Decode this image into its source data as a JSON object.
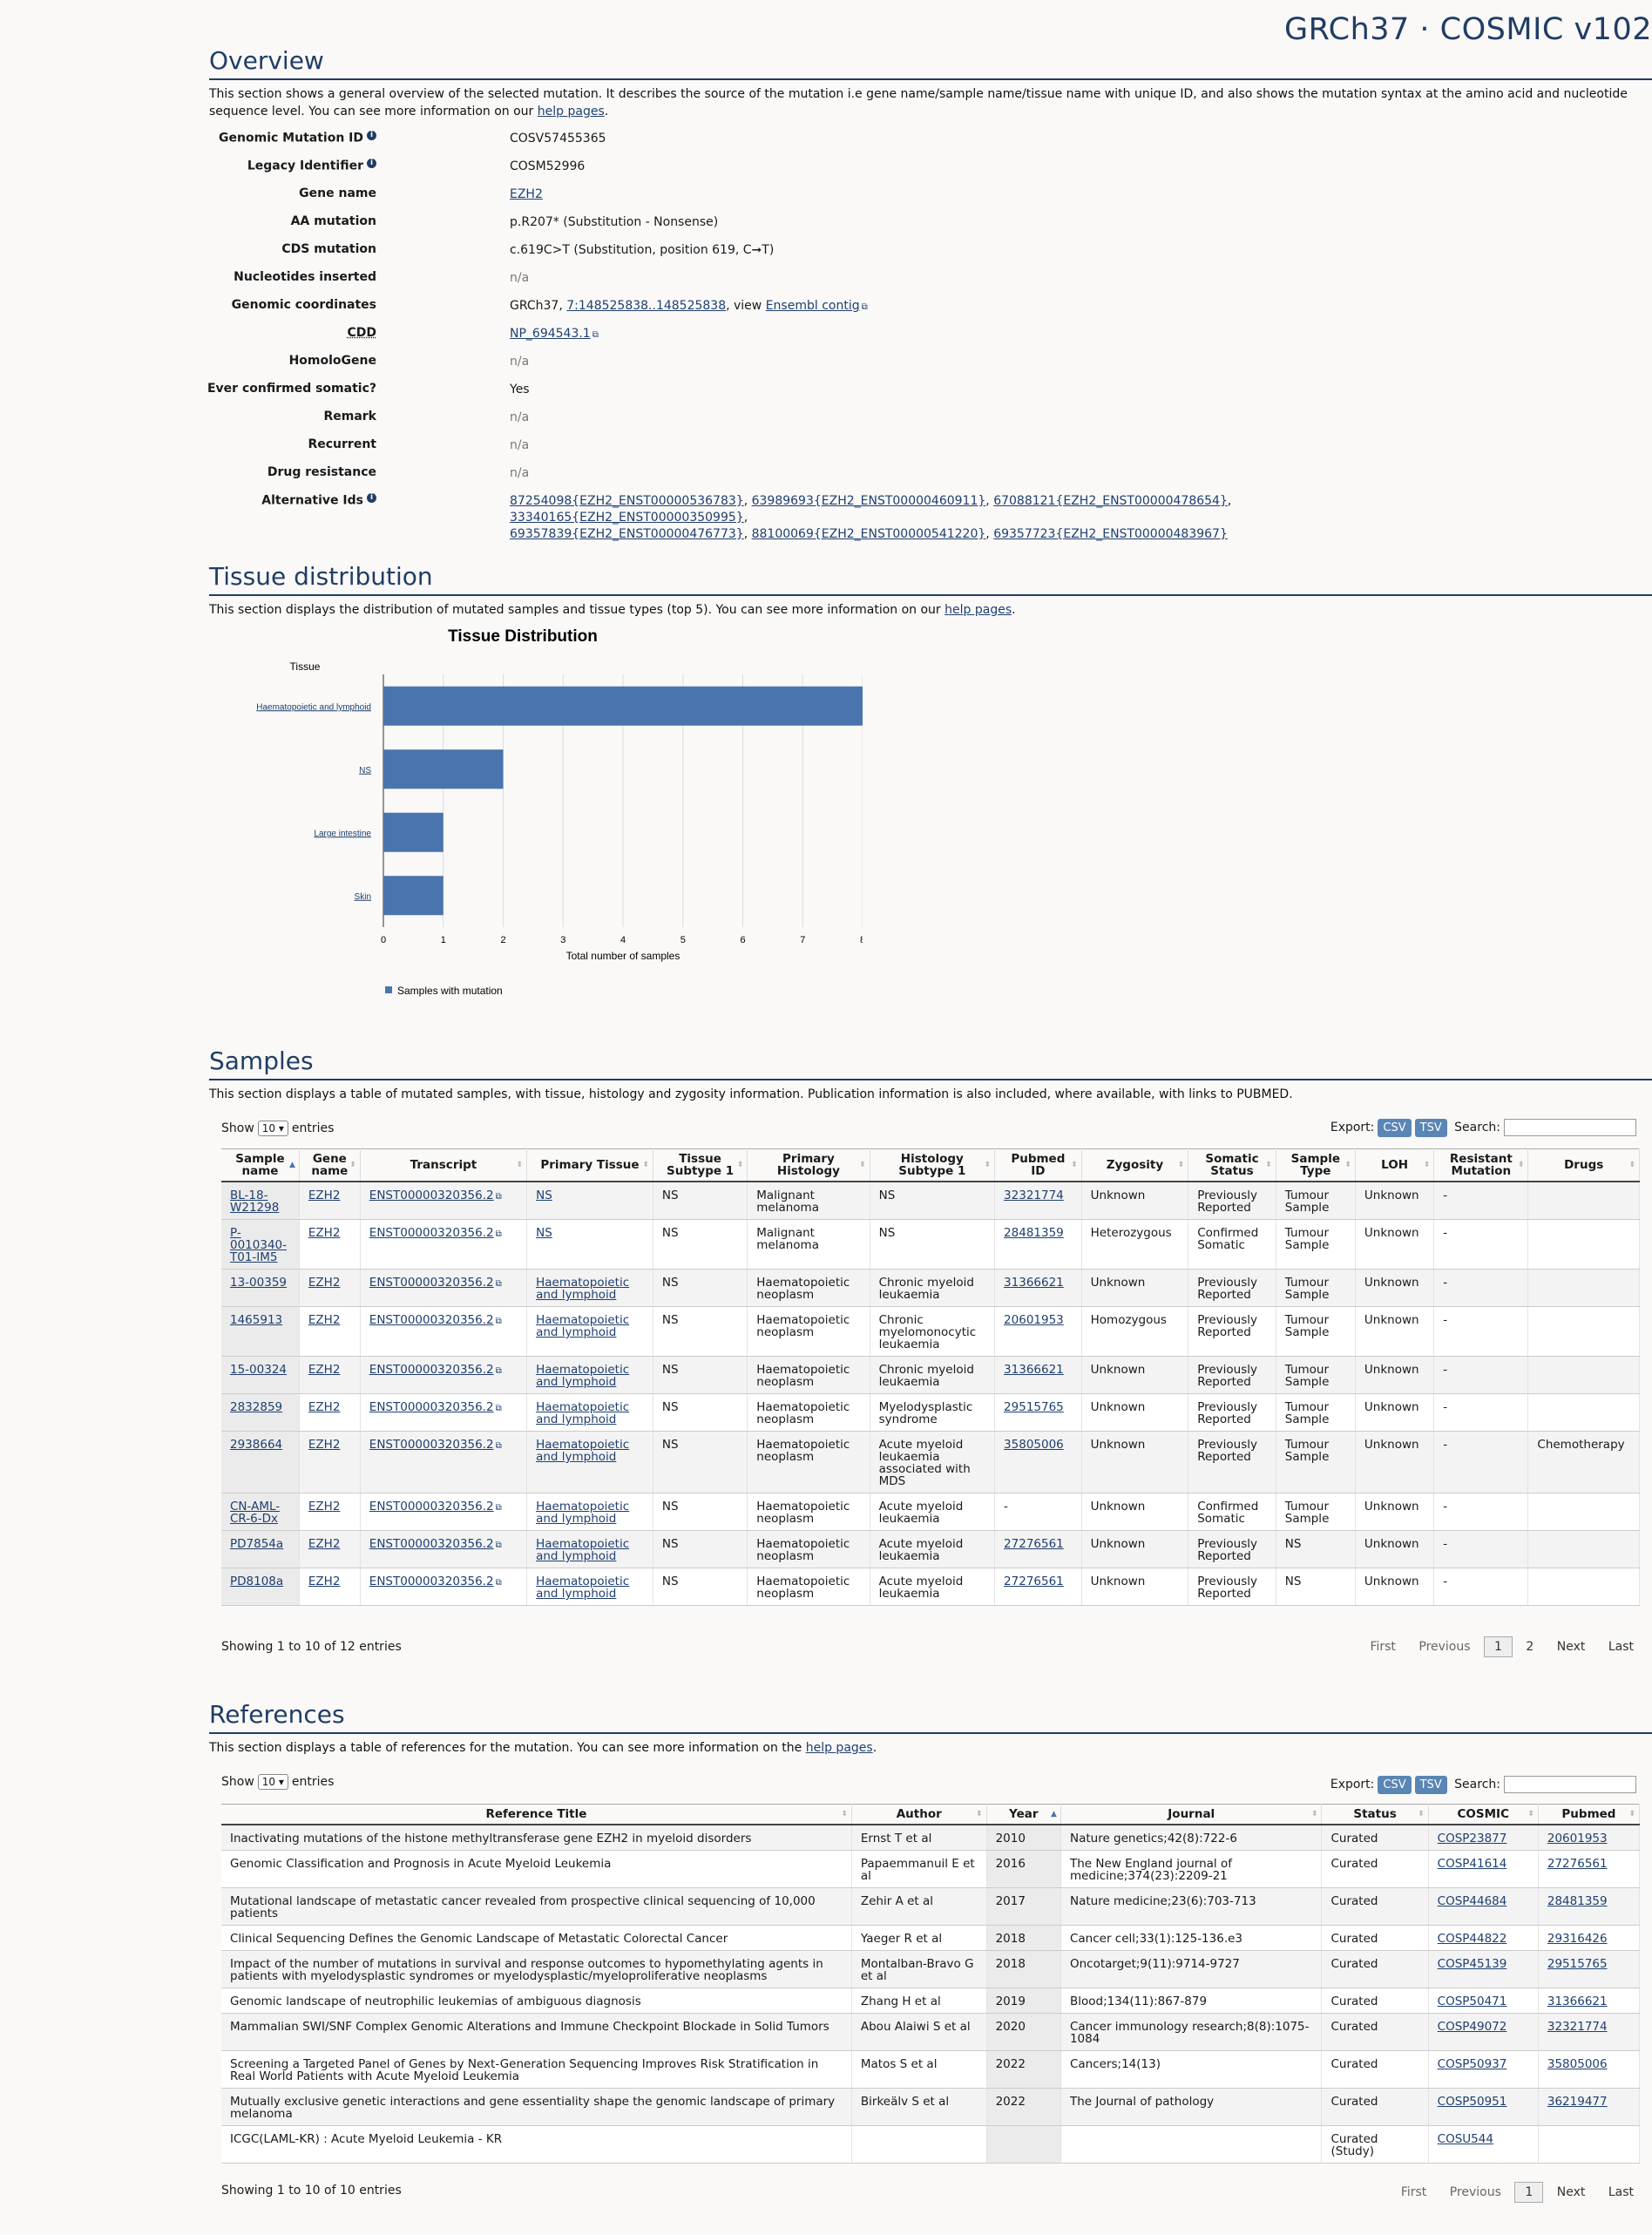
{
  "brand": "GRCh37 · COSMIC v102",
  "overview": {
    "title": "Overview",
    "desc_pre": "This section shows a general overview of the selected mutation. It describes the source of the mutation i.e gene name/sample name/tissue name with unique ID, and also shows the mutation syntax at the amino acid and nucleotide sequence level. You can see more information on our ",
    "desc_link": "help pages",
    "desc_post": ".",
    "fields": {
      "genomic_mutation_id": {
        "label": "Genomic Mutation ID",
        "value": "COSV57455365"
      },
      "legacy_identifier": {
        "label": "Legacy Identifier",
        "value": "COSM52996"
      },
      "gene_name": {
        "label": "Gene name",
        "value": "EZH2"
      },
      "aa_mutation": {
        "label": "AA mutation",
        "value": "p.R207* (Substitution - Nonsense)"
      },
      "cds_mutation": {
        "label": "CDS mutation",
        "value": "c.619C>T (Substitution, position 619, C➞T)"
      },
      "nucleotides_inserted": {
        "label": "Nucleotides inserted",
        "value": "n/a"
      },
      "genomic_coordinates": {
        "label": "Genomic coordinates",
        "pre": "GRCh37, ",
        "link": "7:148525838..148525838",
        "mid": ", view ",
        "link2": "Ensembl contig"
      },
      "cdd": {
        "label": "CDD",
        "value": "NP_694543.1"
      },
      "homologene": {
        "label": "HomoloGene",
        "value": "n/a"
      },
      "ever_confirmed_somatic": {
        "label": "Ever confirmed somatic?",
        "value": "Yes"
      },
      "remark": {
        "label": "Remark",
        "value": "n/a"
      },
      "recurrent": {
        "label": "Recurrent",
        "value": "n/a"
      },
      "drug_resistance": {
        "label": "Drug resistance",
        "value": "n/a"
      },
      "alternative_ids": {
        "label": "Alternative Ids",
        "items": [
          "87254098{EZH2_ENST00000536783}",
          "63989693{EZH2_ENST00000460911}",
          "67088121{EZH2_ENST00000478654}",
          "33340165{EZH2_ENST00000350995}",
          "69357839{EZH2_ENST00000476773}",
          "88100069{EZH2_ENST00000541220}",
          "69357723{EZH2_ENST00000483967}"
        ]
      }
    }
  },
  "tissue": {
    "title": "Tissue distribution",
    "desc_pre": "This section displays the distribution of mutated samples and tissue types (top 5). You can see more information on our ",
    "desc_link": "help pages",
    "desc_post": "."
  },
  "chart_data": {
    "type": "bar",
    "orientation": "horizontal",
    "title": "Tissue Distribution",
    "ylabel": "Tissue",
    "xlabel": "Total number of samples",
    "categories": [
      "Haematopoietic and lymphoid",
      "NS",
      "Large intestine",
      "Skin"
    ],
    "series": [
      {
        "name": "Samples with mutation",
        "values": [
          8,
          2,
          1,
          1
        ]
      }
    ],
    "xlim": [
      0,
      8
    ],
    "xticks": [
      0,
      1,
      2,
      3,
      4,
      5,
      6,
      7,
      8
    ],
    "grid": true,
    "legend": "bottom-left",
    "color": "#4a74ad"
  },
  "samples": {
    "title": "Samples",
    "desc": "This section displays a table of mutated samples, with tissue, histology and zygosity information. Publication information is also included, where available, with links to PUBMED.",
    "show": "Show",
    "length": "10",
    "entries": "entries",
    "export": "Export:",
    "csv": "CSV",
    "tsv": "TSV",
    "search": "Search:",
    "columns": [
      "Sample name",
      "Gene name",
      "Transcript",
      "Primary Tissue",
      "Tissue Subtype 1",
      "Primary Histology",
      "Histology Subtype 1",
      "Pubmed ID",
      "Zygosity",
      "Somatic Status",
      "Sample Type",
      "LOH",
      "Resistant Mutation",
      "Drugs"
    ],
    "rows": [
      [
        "BL-18-W21298",
        "EZH2",
        "ENST00000320356.2",
        "NS",
        "NS",
        "Malignant melanoma",
        "NS",
        "32321774",
        "Unknown",
        "Previously Reported",
        "Tumour Sample",
        "Unknown",
        "-",
        ""
      ],
      [
        "P-0010340-T01-IM5",
        "EZH2",
        "ENST00000320356.2",
        "NS",
        "NS",
        "Malignant melanoma",
        "NS",
        "28481359",
        "Heterozygous",
        "Confirmed Somatic",
        "Tumour Sample",
        "Unknown",
        "-",
        ""
      ],
      [
        "13-00359",
        "EZH2",
        "ENST00000320356.2",
        "Haematopoietic and lymphoid",
        "NS",
        "Haematopoietic neoplasm",
        "Chronic myeloid leukaemia",
        "31366621",
        "Unknown",
        "Previously Reported",
        "Tumour Sample",
        "Unknown",
        "-",
        ""
      ],
      [
        "1465913",
        "EZH2",
        "ENST00000320356.2",
        "Haematopoietic and lymphoid",
        "NS",
        "Haematopoietic neoplasm",
        "Chronic myelomonocytic leukaemia",
        "20601953",
        "Homozygous",
        "Previously Reported",
        "Tumour Sample",
        "Unknown",
        "-",
        ""
      ],
      [
        "15-00324",
        "EZH2",
        "ENST00000320356.2",
        "Haematopoietic and lymphoid",
        "NS",
        "Haematopoietic neoplasm",
        "Chronic myeloid leukaemia",
        "31366621",
        "Unknown",
        "Previously Reported",
        "Tumour Sample",
        "Unknown",
        "-",
        ""
      ],
      [
        "2832859",
        "EZH2",
        "ENST00000320356.2",
        "Haematopoietic and lymphoid",
        "NS",
        "Haematopoietic neoplasm",
        "Myelodysplastic syndrome",
        "29515765",
        "Unknown",
        "Previously Reported",
        "Tumour Sample",
        "Unknown",
        "-",
        ""
      ],
      [
        "2938664",
        "EZH2",
        "ENST00000320356.2",
        "Haematopoietic and lymphoid",
        "NS",
        "Haematopoietic neoplasm",
        "Acute myeloid leukaemia associated with MDS",
        "35805006",
        "Unknown",
        "Previously Reported",
        "Tumour Sample",
        "Unknown",
        "-",
        "Chemotherapy"
      ],
      [
        "CN-AML-CR-6-Dx",
        "EZH2",
        "ENST00000320356.2",
        "Haematopoietic and lymphoid",
        "NS",
        "Haematopoietic neoplasm",
        "Acute myeloid leukaemia",
        "-",
        "Unknown",
        "Confirmed Somatic",
        "Tumour Sample",
        "Unknown",
        "-",
        ""
      ],
      [
        "PD7854a",
        "EZH2",
        "ENST00000320356.2",
        "Haematopoietic and lymphoid",
        "NS",
        "Haematopoietic neoplasm",
        "Acute myeloid leukaemia",
        "27276561",
        "Unknown",
        "Previously Reported",
        "NS",
        "Unknown",
        "-",
        ""
      ],
      [
        "PD8108a",
        "EZH2",
        "ENST00000320356.2",
        "Haematopoietic and lymphoid",
        "NS",
        "Haematopoietic neoplasm",
        "Acute myeloid leukaemia",
        "27276561",
        "Unknown",
        "Previously Reported",
        "NS",
        "Unknown",
        "-",
        ""
      ]
    ],
    "info": "Showing 1 to 10 of 12 entries",
    "pager": {
      "first": "First",
      "previous": "Previous",
      "p1": "1",
      "p2": "2",
      "next": "Next",
      "last": "Last"
    }
  },
  "references": {
    "title": "References",
    "desc_pre": "This section displays a table of references for the mutation. You can see more information on the ",
    "desc_link": "help pages",
    "desc_post": ".",
    "show": "Show",
    "length": "10",
    "entries": "entries",
    "export": "Export:",
    "csv": "CSV",
    "tsv": "TSV",
    "search": "Search:",
    "columns": [
      "Reference Title",
      "Author",
      "Year",
      "Journal",
      "Status",
      "COSMIC",
      "Pubmed"
    ],
    "rows": [
      [
        "Inactivating mutations of the histone methyltransferase gene EZH2 in myeloid disorders",
        "Ernst T et al",
        "2010",
        "Nature genetics;42(8):722-6",
        "Curated",
        "COSP23877",
        "20601953"
      ],
      [
        "Genomic Classification and Prognosis in Acute Myeloid Leukemia",
        "Papaemmanuil E et al",
        "2016",
        "The New England journal of medicine;374(23):2209-21",
        "Curated",
        "COSP41614",
        "27276561"
      ],
      [
        "Mutational landscape of metastatic cancer revealed from prospective clinical sequencing of 10,000 patients",
        "Zehir A et al",
        "2017",
        "Nature medicine;23(6):703-713",
        "Curated",
        "COSP44684",
        "28481359"
      ],
      [
        "Clinical Sequencing Defines the Genomic Landscape of Metastatic Colorectal Cancer",
        "Yaeger R et al",
        "2018",
        "Cancer cell;33(1):125-136.e3",
        "Curated",
        "COSP44822",
        "29316426"
      ],
      [
        "Impact of the number of mutations in survival and response outcomes to hypomethylating agents in patients with myelodysplastic syndromes or myelodysplastic/myeloproliferative neoplasms",
        "Montalban-Bravo G et al",
        "2018",
        "Oncotarget;9(11):9714-9727",
        "Curated",
        "COSP45139",
        "29515765"
      ],
      [
        "Genomic landscape of neutrophilic leukemias of ambiguous diagnosis",
        "Zhang H et al",
        "2019",
        "Blood;134(11):867-879",
        "Curated",
        "COSP50471",
        "31366621"
      ],
      [
        "Mammalian SWI/SNF Complex Genomic Alterations and Immune Checkpoint Blockade in Solid Tumors",
        "Abou Alaiwi S et al",
        "2020",
        "Cancer immunology research;8(8):1075-1084",
        "Curated",
        "COSP49072",
        "32321774"
      ],
      [
        "Screening a Targeted Panel of Genes by Next-Generation Sequencing Improves Risk Stratification in Real World Patients with Acute Myeloid Leukemia",
        "Matos S et al",
        "2022",
        "Cancers;14(13)",
        "Curated",
        "COSP50937",
        "35805006"
      ],
      [
        "Mutually exclusive genetic interactions and gene essentiality shape the genomic landscape of primary melanoma",
        "Birkeälv S et al",
        "2022",
        "The Journal of pathology",
        "Curated",
        "COSP50951",
        "36219477"
      ],
      [
        "ICGC(LAML-KR) : Acute Myeloid Leukemia - KR",
        "",
        "",
        "",
        "Curated (Study)",
        "COSU544",
        ""
      ]
    ],
    "info": "Showing 1 to 10 of 10 entries",
    "pager": {
      "first": "First",
      "previous": "Previous",
      "p1": "1",
      "next": "Next",
      "last": "Last"
    }
  }
}
